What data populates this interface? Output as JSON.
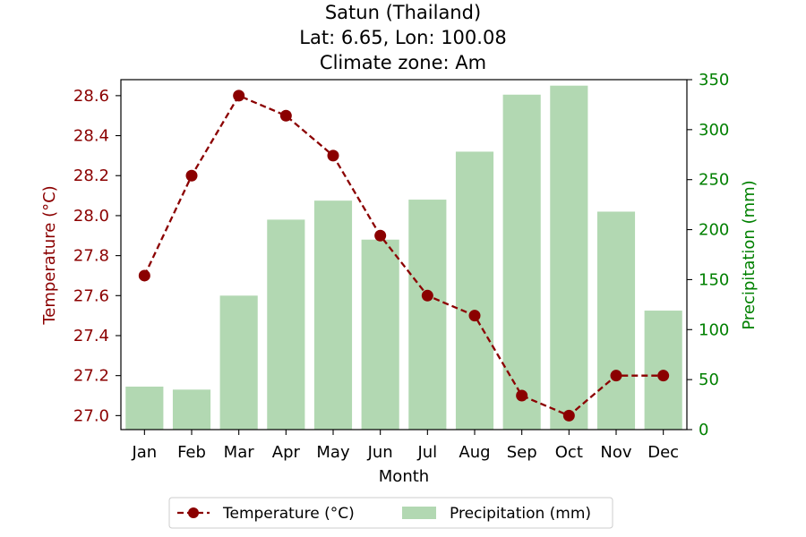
{
  "chart_data": {
    "type": "bar+line",
    "title": [
      "Satun (Thailand)",
      "Lat: 6.65, Lon: 100.08",
      "Climate zone: Am"
    ],
    "xlabel": "Month",
    "categories": [
      "Jan",
      "Feb",
      "Mar",
      "Apr",
      "May",
      "Jun",
      "Jul",
      "Aug",
      "Sep",
      "Oct",
      "Nov",
      "Dec"
    ],
    "series": [
      {
        "name": "Temperature (°C)",
        "kind": "line",
        "axis": "left",
        "color": "#8b0000",
        "style": "dashed",
        "marker": "circle",
        "values": [
          27.7,
          28.2,
          28.6,
          28.5,
          28.3,
          27.9,
          27.6,
          27.5,
          27.1,
          27.0,
          27.2,
          27.2
        ]
      },
      {
        "name": "Precipitation (mm)",
        "kind": "bar",
        "axis": "right",
        "color": "#b2d8b2",
        "values": [
          43,
          40,
          134,
          210,
          229,
          190,
          230,
          278,
          335,
          344,
          218,
          119
        ]
      }
    ],
    "left_axis": {
      "label": "Temperature (°C)",
      "color": "#8b0000",
      "range": [
        26.93,
        28.68
      ],
      "ticks": [
        27.0,
        27.2,
        27.4,
        27.6,
        27.8,
        28.0,
        28.2,
        28.4,
        28.6
      ],
      "tick_labels": [
        "27.0",
        "27.2",
        "27.4",
        "27.6",
        "27.8",
        "28.0",
        "28.2",
        "28.4",
        "28.6"
      ]
    },
    "right_axis": {
      "label": "Precipitation (mm)",
      "color": "#008000",
      "range": [
        0,
        350
      ],
      "ticks": [
        0,
        50,
        100,
        150,
        200,
        250,
        300,
        350
      ],
      "tick_labels": [
        "0",
        "50",
        "100",
        "150",
        "200",
        "250",
        "300",
        "350"
      ]
    },
    "grid": false,
    "legend_position": "bottom-center"
  }
}
